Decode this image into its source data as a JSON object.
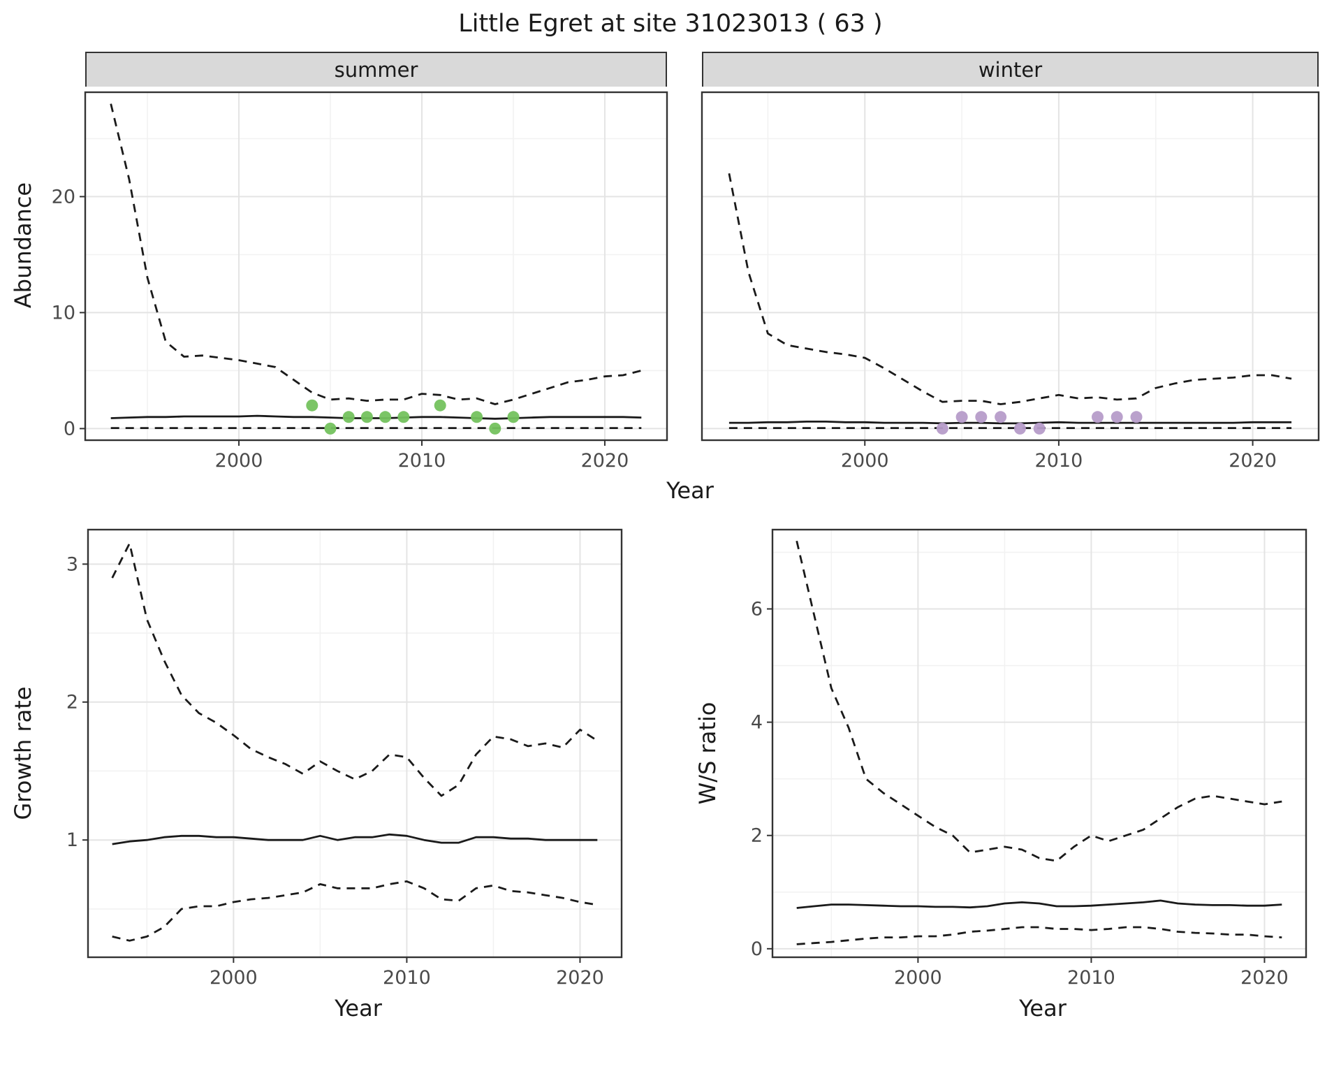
{
  "title": "Little Egret at site 31023013 ( 63 )",
  "axis_labels": {
    "abundance": "Abundance",
    "year": "Year",
    "growth": "Growth rate",
    "ws": "W/S ratio"
  },
  "facets": {
    "summer": "summer",
    "winter": "winter"
  },
  "colors": {
    "summer_points": "#74c25e",
    "winter_points": "#b69cc9",
    "line": "#1a1a1a",
    "strip_bg": "#d9d9d9",
    "grid_major": "#e4e4e4",
    "grid_minor": "#f2f2f2"
  },
  "chart_data": [
    {
      "id": "abundance-summer",
      "type": "line",
      "facet_label": "summer",
      "ylabel": "Abundance",
      "xlabel": "Year",
      "xlim": [
        1991.6,
        2023.4
      ],
      "ylim": [
        -1,
        29
      ],
      "x_ticks": [
        2000,
        2010,
        2020
      ],
      "x_tick_labels": [
        "2000",
        "2010",
        "2020"
      ],
      "x_minor": [
        1995,
        2005,
        2015
      ],
      "y_ticks": [
        0,
        10,
        20
      ],
      "y_tick_labels": [
        "0",
        "10",
        "20"
      ],
      "y_minor": [
        5,
        15,
        25
      ],
      "show_y_tick_labels": true,
      "x": [
        1993,
        1994,
        1995,
        1996,
        1997,
        1998,
        1999,
        2000,
        2001,
        2002,
        2003,
        2004,
        2005,
        2006,
        2007,
        2008,
        2009,
        2010,
        2011,
        2012,
        2013,
        2014,
        2015,
        2016,
        2017,
        2018,
        2019,
        2020,
        2021,
        2022
      ],
      "series": [
        {
          "name": "upper_ci",
          "style": "dashed",
          "values": [
            28,
            21.5,
            13,
            7.5,
            6.2,
            6.3,
            6.1,
            5.9,
            5.6,
            5.3,
            4.2,
            3.1,
            2.5,
            2.6,
            2.4,
            2.5,
            2.5,
            3.0,
            2.9,
            2.5,
            2.6,
            2.1,
            2.5,
            3.0,
            3.5,
            4.0,
            4.2,
            4.5,
            4.6,
            5.0
          ]
        },
        {
          "name": "median",
          "style": "solid",
          "values": [
            0.9,
            0.95,
            1.0,
            1.0,
            1.05,
            1.05,
            1.05,
            1.05,
            1.1,
            1.05,
            1.0,
            1.0,
            0.95,
            0.9,
            0.9,
            0.9,
            0.95,
            1.0,
            1.0,
            0.95,
            0.9,
            0.85,
            0.9,
            0.95,
            1.0,
            1.0,
            1.0,
            1.0,
            1.0,
            0.95
          ]
        },
        {
          "name": "lower_ci",
          "style": "dashed",
          "values": [
            0.05,
            0.05,
            0.05,
            0.05,
            0.05,
            0.05,
            0.05,
            0.05,
            0.05,
            0.05,
            0.05,
            0.05,
            0.05,
            0.05,
            0.05,
            0.05,
            0.05,
            0.05,
            0.05,
            0.05,
            0.05,
            0.05,
            0.05,
            0.05,
            0.05,
            0.05,
            0.05,
            0.05,
            0.05,
            0.05
          ]
        }
      ],
      "points": {
        "label": "observed-counts",
        "color": "#74c25e",
        "x": [
          2004,
          2005,
          2006,
          2007,
          2008,
          2009,
          2011,
          2013,
          2014,
          2015
        ],
        "y": [
          2,
          0,
          1,
          1,
          1,
          1,
          2,
          1,
          0,
          1
        ]
      }
    },
    {
      "id": "abundance-winter",
      "type": "line",
      "facet_label": "winter",
      "ylabel": "Abundance",
      "xlabel": "Year",
      "xlim": [
        1991.6,
        2023.4
      ],
      "ylim": [
        -1,
        29
      ],
      "x_ticks": [
        2000,
        2010,
        2020
      ],
      "x_tick_labels": [
        "2000",
        "2010",
        "2020"
      ],
      "x_minor": [
        1995,
        2005,
        2015
      ],
      "y_ticks": [
        0,
        10,
        20
      ],
      "y_tick_labels": [
        "0",
        "10",
        "20"
      ],
      "y_minor": [
        5,
        15,
        25
      ],
      "show_y_tick_labels": false,
      "x": [
        1993,
        1994,
        1995,
        1996,
        1997,
        1998,
        1999,
        2000,
        2001,
        2002,
        2003,
        2004,
        2005,
        2006,
        2007,
        2008,
        2009,
        2010,
        2011,
        2012,
        2013,
        2014,
        2015,
        2016,
        2017,
        2018,
        2019,
        2020,
        2021,
        2022
      ],
      "series": [
        {
          "name": "upper_ci",
          "style": "dashed",
          "values": [
            22,
            13.5,
            8.2,
            7.2,
            6.9,
            6.6,
            6.4,
            6.1,
            5.2,
            4.2,
            3.2,
            2.3,
            2.4,
            2.4,
            2.1,
            2.3,
            2.6,
            2.9,
            2.6,
            2.7,
            2.5,
            2.6,
            3.5,
            3.9,
            4.2,
            4.3,
            4.4,
            4.6,
            4.6,
            4.3
          ]
        },
        {
          "name": "median",
          "style": "solid",
          "values": [
            0.5,
            0.5,
            0.55,
            0.55,
            0.6,
            0.6,
            0.55,
            0.55,
            0.5,
            0.5,
            0.5,
            0.45,
            0.5,
            0.5,
            0.45,
            0.45,
            0.5,
            0.55,
            0.5,
            0.5,
            0.5,
            0.5,
            0.5,
            0.5,
            0.5,
            0.5,
            0.5,
            0.55,
            0.55,
            0.55
          ]
        },
        {
          "name": "lower_ci",
          "style": "dashed",
          "values": [
            0.05,
            0.05,
            0.05,
            0.05,
            0.05,
            0.05,
            0.05,
            0.05,
            0.05,
            0.05,
            0.05,
            0.05,
            0.05,
            0.05,
            0.05,
            0.05,
            0.05,
            0.05,
            0.05,
            0.05,
            0.05,
            0.05,
            0.05,
            0.05,
            0.05,
            0.05,
            0.05,
            0.05,
            0.05,
            0.05
          ]
        }
      ],
      "points": {
        "label": "observed-counts",
        "color": "#b69cc9",
        "x": [
          2004,
          2005,
          2006,
          2007,
          2008,
          2009,
          2012,
          2013,
          2014
        ],
        "y": [
          0,
          1,
          1,
          1,
          0,
          0,
          1,
          1,
          1
        ]
      }
    },
    {
      "id": "growth-rate",
      "type": "line",
      "ylabel": "Growth rate",
      "xlabel": "Year",
      "xlim": [
        1991.6,
        2022.4
      ],
      "ylim": [
        0.15,
        3.25
      ],
      "x_ticks": [
        2000,
        2010,
        2020
      ],
      "x_tick_labels": [
        "2000",
        "2010",
        "2020"
      ],
      "x_minor": [
        1995,
        2005,
        2015
      ],
      "y_ticks": [
        1,
        2,
        3
      ],
      "y_tick_labels": [
        "1",
        "2",
        "3"
      ],
      "y_minor": [
        0.5,
        1.5,
        2.5
      ],
      "show_y_tick_labels": true,
      "x": [
        1993,
        1994,
        1995,
        1996,
        1997,
        1998,
        1999,
        2000,
        2001,
        2002,
        2003,
        2004,
        2005,
        2006,
        2007,
        2008,
        2009,
        2010,
        2011,
        2012,
        2013,
        2014,
        2015,
        2016,
        2017,
        2018,
        2019,
        2020,
        2021
      ],
      "series": [
        {
          "name": "upper_ci",
          "style": "dashed",
          "values": [
            2.9,
            3.15,
            2.6,
            2.3,
            2.05,
            1.92,
            1.85,
            1.76,
            1.66,
            1.6,
            1.55,
            1.48,
            1.57,
            1.5,
            1.44,
            1.5,
            1.62,
            1.6,
            1.45,
            1.32,
            1.4,
            1.62,
            1.75,
            1.73,
            1.68,
            1.7,
            1.67,
            1.8,
            1.72
          ]
        },
        {
          "name": "median",
          "style": "solid",
          "values": [
            0.97,
            0.99,
            1.0,
            1.02,
            1.03,
            1.03,
            1.02,
            1.02,
            1.01,
            1.0,
            1.0,
            1.0,
            1.03,
            1.0,
            1.02,
            1.02,
            1.04,
            1.03,
            1.0,
            0.98,
            0.98,
            1.02,
            1.02,
            1.01,
            1.01,
            1.0,
            1.0,
            1.0,
            1.0
          ]
        },
        {
          "name": "lower_ci",
          "style": "dashed",
          "values": [
            0.3,
            0.27,
            0.3,
            0.37,
            0.5,
            0.52,
            0.52,
            0.55,
            0.57,
            0.58,
            0.6,
            0.62,
            0.68,
            0.65,
            0.65,
            0.65,
            0.68,
            0.7,
            0.65,
            0.57,
            0.56,
            0.65,
            0.67,
            0.63,
            0.62,
            0.6,
            0.58,
            0.55,
            0.53
          ]
        }
      ]
    },
    {
      "id": "ws-ratio",
      "type": "line",
      "ylabel": "W/S ratio",
      "xlabel": "Year",
      "xlim": [
        1991.6,
        2022.4
      ],
      "ylim": [
        -0.15,
        7.4
      ],
      "x_ticks": [
        2000,
        2010,
        2020
      ],
      "x_tick_labels": [
        "2000",
        "2010",
        "2020"
      ],
      "x_minor": [
        1995,
        2005,
        2015
      ],
      "y_ticks": [
        0,
        2,
        4,
        6
      ],
      "y_tick_labels": [
        "0",
        "2",
        "4",
        "6"
      ],
      "y_minor": [
        1,
        3,
        5,
        7
      ],
      "show_y_tick_labels": true,
      "x": [
        1993,
        1994,
        1995,
        1996,
        1997,
        1998,
        1999,
        2000,
        2001,
        2002,
        2003,
        2004,
        2005,
        2006,
        2007,
        2008,
        2009,
        2010,
        2011,
        2012,
        2013,
        2014,
        2015,
        2016,
        2017,
        2018,
        2019,
        2020,
        2021
      ],
      "series": [
        {
          "name": "upper_ci",
          "style": "dashed",
          "values": [
            7.2,
            5.9,
            4.6,
            3.9,
            3.0,
            2.75,
            2.55,
            2.35,
            2.15,
            2.0,
            1.7,
            1.75,
            1.8,
            1.75,
            1.6,
            1.55,
            1.8,
            2.0,
            1.9,
            2.0,
            2.1,
            2.3,
            2.5,
            2.65,
            2.7,
            2.65,
            2.6,
            2.55,
            2.6
          ]
        },
        {
          "name": "median",
          "style": "solid",
          "values": [
            0.72,
            0.75,
            0.78,
            0.78,
            0.77,
            0.76,
            0.75,
            0.75,
            0.74,
            0.74,
            0.73,
            0.75,
            0.8,
            0.82,
            0.8,
            0.75,
            0.75,
            0.76,
            0.78,
            0.8,
            0.82,
            0.85,
            0.8,
            0.78,
            0.77,
            0.77,
            0.76,
            0.76,
            0.78
          ]
        },
        {
          "name": "lower_ci",
          "style": "dashed",
          "values": [
            0.08,
            0.1,
            0.12,
            0.15,
            0.18,
            0.2,
            0.2,
            0.22,
            0.22,
            0.25,
            0.3,
            0.32,
            0.35,
            0.38,
            0.38,
            0.35,
            0.35,
            0.33,
            0.35,
            0.38,
            0.38,
            0.35,
            0.3,
            0.28,
            0.27,
            0.25,
            0.25,
            0.22,
            0.2
          ]
        }
      ]
    }
  ]
}
